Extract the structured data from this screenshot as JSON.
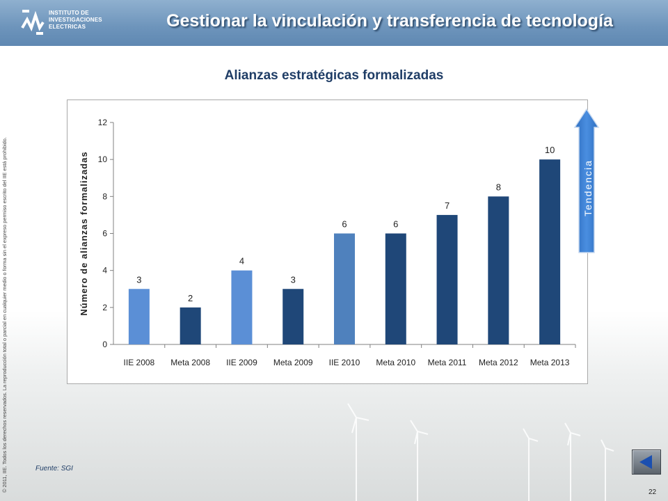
{
  "header": {
    "title": "Gestionar la vinculación y transferencia de tecnología",
    "logo_lines": [
      "INSTITUTO DE",
      "INVESTIGACIONES",
      "ELECTRICAS"
    ],
    "logo_icon": "iie-logo-icon"
  },
  "copyright": "© 2011, IIE. Todos los derechos reservados. La reproducción total o parcial en cualquier medio o forma sin el expreso permiso escrito del IIE está prohibido.",
  "chart_data": {
    "type": "bar",
    "title": "Alianzas estratégicas formalizadas",
    "xlabel": "",
    "ylabel": "Número de alianzas  formalizadas",
    "categories": [
      "IIE 2008",
      "Meta 2008",
      "IIE 2009",
      "Meta 2009",
      "IIE 2010",
      "Meta 2010",
      "Meta 2011",
      "Meta 2012",
      "Meta 2013"
    ],
    "values": [
      3,
      2,
      4,
      3,
      6,
      6,
      7,
      8,
      10
    ],
    "ylim": [
      0,
      12
    ],
    "yticks": [
      0,
      2,
      4,
      6,
      8,
      10,
      12
    ],
    "grid": false,
    "legend": "none",
    "colors": [
      "#5b8fd6",
      "#1f4778",
      "#5b8fd6",
      "#1f4778",
      "#4f81bd",
      "#1f4778",
      "#1f4778",
      "#1f4778",
      "#1f4778"
    ]
  },
  "trend": {
    "label": "Tendencia",
    "color": "#3d7fd0"
  },
  "source": "Fuente: SGI",
  "page_number": "22",
  "nav": {
    "back_icon": "back-arrow-icon"
  }
}
